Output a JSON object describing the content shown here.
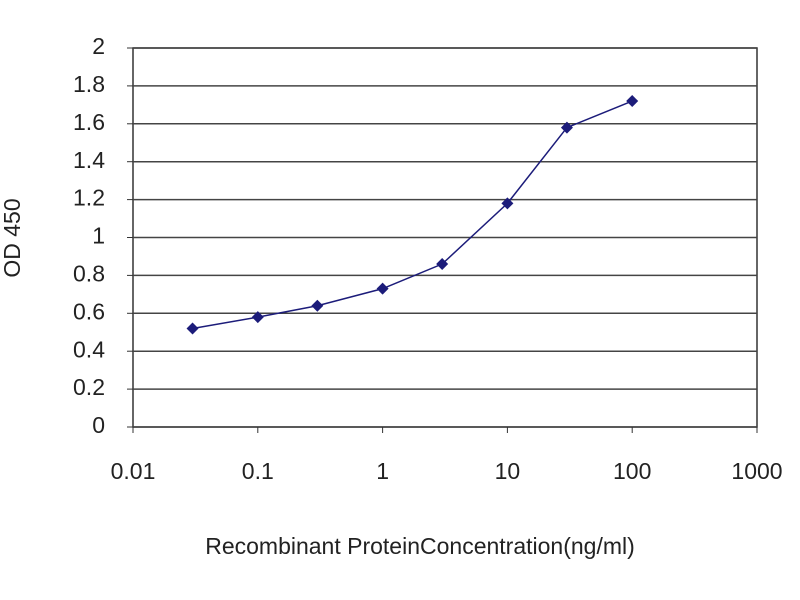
{
  "chart_data": {
    "type": "line",
    "x_label": "Recombinant ProteinConcentration(ng/ml)",
    "y_label": "OD 450",
    "x": [
      0.03,
      0.1,
      0.3,
      1,
      3,
      10,
      30,
      100
    ],
    "values": [
      0.52,
      0.58,
      0.64,
      0.73,
      0.86,
      1.18,
      1.58,
      1.72
    ],
    "color": "#1c1c7a",
    "xscale": "log",
    "xlim": [
      0.01,
      1000
    ],
    "xticks": [
      0.01,
      0.1,
      1,
      10,
      100,
      1000
    ],
    "ylim": [
      0,
      2
    ],
    "yticks": [
      0,
      0.2,
      0.4,
      0.6,
      0.8,
      1,
      1.2,
      1.4,
      1.6,
      1.8,
      2
    ],
    "grid": true
  }
}
